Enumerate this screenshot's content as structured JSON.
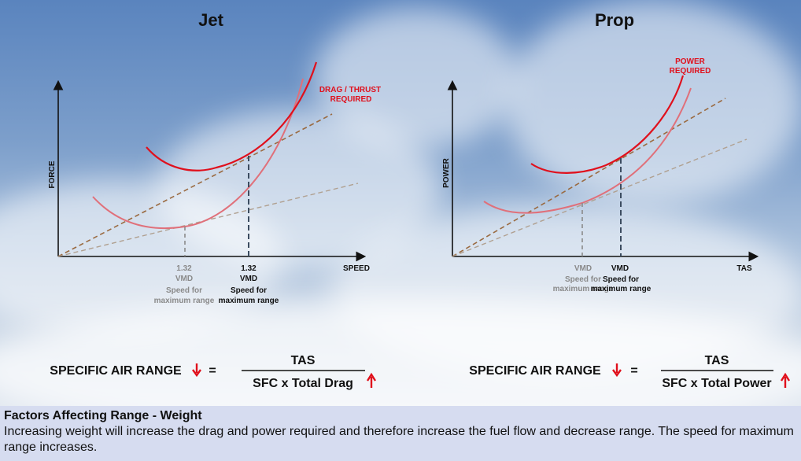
{
  "jet": {
    "title": "Jet",
    "y_axis": "FORCE",
    "x_axis": "SPEED",
    "curve_label_1": "DRAG / THRUST",
    "curve_label_2": "REQUIRED",
    "grey_mark_1": "1.32",
    "grey_mark_2": "VMD",
    "grey_mark_3": "Speed for",
    "grey_mark_4": "maximum range",
    "dark_mark_1": "1.32",
    "dark_mark_2": "VMD",
    "dark_mark_3": "Speed for",
    "dark_mark_4": "maximum range",
    "formula_left": "SPECIFIC AIR RANGE",
    "formula_eq": "=",
    "formula_num": "TAS",
    "formula_den": "SFC x Total Drag"
  },
  "prop": {
    "title": "Prop",
    "y_axis": "POWER",
    "x_axis": "TAS",
    "curve_label_1": "POWER",
    "curve_label_2": "REQUIRED",
    "grey_mark_1": "VMD",
    "grey_mark_2": "Speed for",
    "grey_mark_3": "maximum range",
    "dark_mark_1": "VMD",
    "dark_mark_2": "Speed for",
    "dark_mark_3": "maximum range",
    "formula_left": "SPECIFIC AIR RANGE",
    "formula_eq": "=",
    "formula_num": "TAS",
    "formula_den": "SFC x Total Power"
  },
  "caption": {
    "title": "Factors Affecting Range - Weight",
    "body": "Increasing weight will increase the drag and power required and therefore increase the fuel flow and decrease range. The speed for maximum range increases."
  },
  "colors": {
    "curve_heavy": "#e0101c",
    "curve_light": "#e0707a",
    "tangent_dark": "#9a6a40",
    "tangent_light": "#b0a090",
    "arrow": "#e0101c"
  }
}
